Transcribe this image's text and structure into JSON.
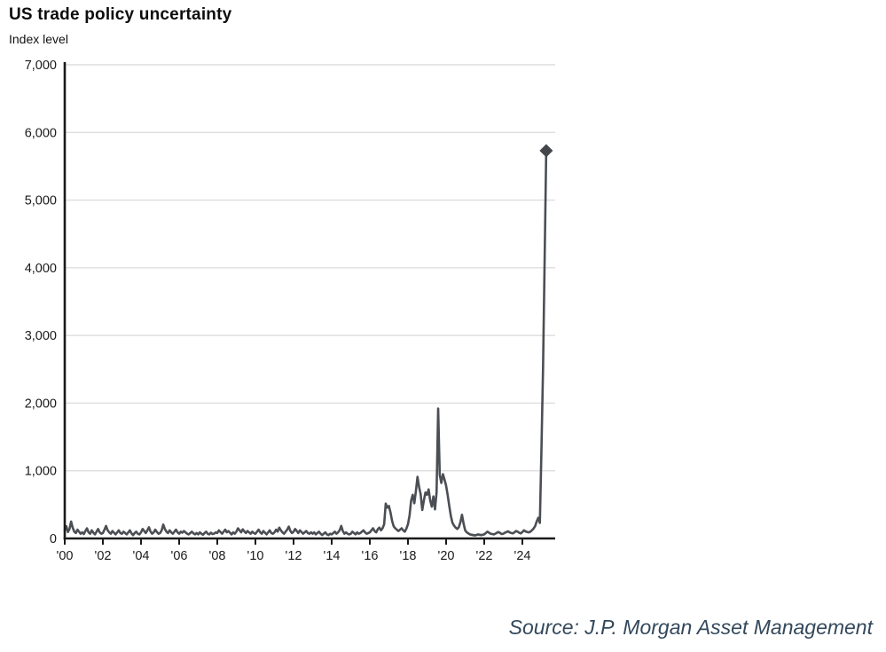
{
  "header": {
    "title": "US trade policy uncertainty",
    "subtitle": "Index level"
  },
  "footer": {
    "source": "Source: J.P. Morgan Asset Management"
  },
  "colors": {
    "line": "#4b4f54",
    "marker": "#43474c",
    "grid": "#dedede",
    "axis": "#1a1a1a",
    "label": "#1a1a1a",
    "source_text": "#33485c"
  },
  "chart_data": {
    "type": "line",
    "title": "US trade policy uncertainty",
    "ylabel": "Index level",
    "xlabel": "",
    "legend": "none",
    "grid": "horizontal",
    "ylim": [
      0,
      7000
    ],
    "y_ticks": [
      0,
      1000,
      2000,
      3000,
      4000,
      5000,
      6000,
      7000
    ],
    "y_tick_labels": [
      "0",
      "1,000",
      "2,000",
      "3,000",
      "4,000",
      "5,000",
      "6,000",
      "7,000"
    ],
    "x_tick_years": [
      2000,
      2002,
      2004,
      2006,
      2008,
      2010,
      2012,
      2014,
      2016,
      2018,
      2020,
      2022,
      2024
    ],
    "x_tick_labels": [
      "'00",
      "'02",
      "'04",
      "'06",
      "'08",
      "'10",
      "'12",
      "'14",
      "'16",
      "'18",
      "'20",
      "'22",
      "'24"
    ],
    "frequency": "monthly",
    "start_year": 2000,
    "marker_on_last_point": true,
    "last_value": 5730,
    "series": [
      {
        "name": "US trade policy uncertainty index",
        "values": [
          120,
          180,
          95,
          140,
          250,
          160,
          100,
          80,
          130,
          100,
          70,
          90,
          65,
          110,
          150,
          90,
          70,
          120,
          85,
          60,
          100,
          140,
          90,
          70,
          80,
          130,
          185,
          120,
          90,
          70,
          110,
          85,
          60,
          90,
          120,
          80,
          70,
          100,
          80,
          60,
          90,
          120,
          75,
          50,
          80,
          100,
          70,
          60,
          90,
          140,
          110,
          80,
          120,
          165,
          100,
          70,
          90,
          130,
          95,
          70,
          80,
          120,
          205,
          140,
          100,
          80,
          120,
          90,
          70,
          100,
          130,
          90,
          70,
          100,
          85,
          110,
          90,
          70,
          60,
          80,
          100,
          75,
          60,
          80,
          60,
          90,
          70,
          55,
          80,
          100,
          70,
          60,
          85,
          65,
          70,
          90,
          80,
          120,
          95,
          70,
          100,
          130,
          90,
          110,
          85,
          60,
          90,
          70,
          100,
          150,
          120,
          90,
          135,
          105,
          80,
          110,
          90,
          70,
          100,
          80,
          70,
          100,
          130,
          90,
          70,
          110,
          85,
          60,
          90,
          120,
          80,
          70,
          90,
          130,
          100,
          160,
          120,
          90,
          70,
          100,
          130,
          175,
          110,
          80,
          100,
          140,
          110,
          80,
          120,
          95,
          70,
          90,
          110,
          80,
          70,
          90,
          70,
          90,
          60,
          80,
          100,
          70,
          50,
          70,
          90,
          60,
          50,
          70,
          60,
          80,
          100,
          70,
          90,
          120,
          185,
          110,
          70,
          90,
          70,
          60,
          70,
          100,
          80,
          60,
          90,
          70,
          80,
          100,
          120,
          90,
          70,
          80,
          90,
          120,
          150,
          110,
          90,
          135,
          160,
          120,
          150,
          210,
          515,
          455,
          480,
          385,
          260,
          180,
          150,
          130,
          110,
          130,
          150,
          120,
          100,
          145,
          210,
          340,
          560,
          645,
          520,
          700,
          910,
          760,
          650,
          420,
          560,
          680,
          645,
          725,
          560,
          470,
          620,
          430,
          680,
          1920,
          940,
          820,
          950,
          870,
          780,
          640,
          480,
          330,
          230,
          190,
          160,
          140,
          165,
          240,
          350,
          220,
          120,
          90,
          75,
          60,
          55,
          50,
          45,
          50,
          60,
          55,
          50,
          55,
          60,
          80,
          100,
          85,
          70,
          65,
          60,
          70,
          85,
          95,
          80,
          65,
          70,
          85,
          95,
          105,
          90,
          80,
          75,
          90,
          110,
          100,
          85,
          75,
          95,
          120,
          105,
          95,
          90,
          100,
          120,
          145,
          180,
          250,
          305,
          230,
          1310,
          2500,
          4100,
          5730
        ]
      }
    ]
  }
}
